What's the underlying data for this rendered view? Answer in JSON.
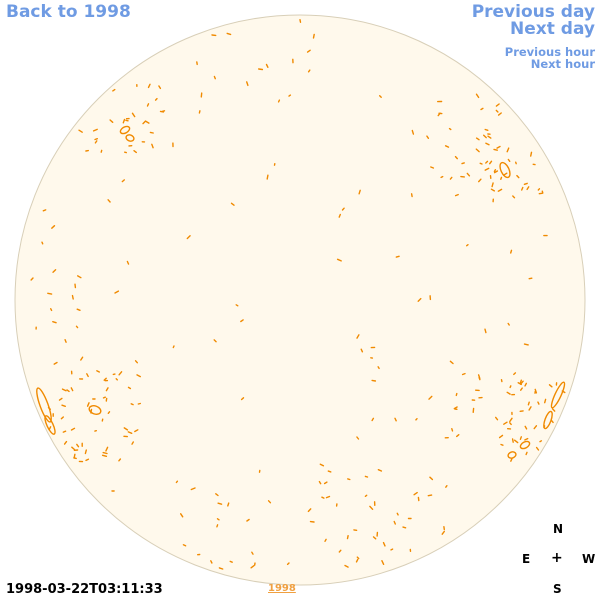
{
  "nav": {
    "back_label": "Back to 1998",
    "prev_day_label": "Previous day",
    "next_day_label": "Next day",
    "prev_hour_label": "Previous hour",
    "next_hour_label": "Next hour"
  },
  "compass": {
    "north": "N",
    "east": "E",
    "center": "+",
    "west": "W",
    "south": "S"
  },
  "timestamp": "1998-03-22T03:11:33",
  "year_link": "1998",
  "colors": {
    "link": "#6f9be3",
    "disk_fill": "#fff9ec",
    "disk_edge": "#d8cfb8",
    "contour": "#f08a00",
    "year_link": "#f0a040"
  },
  "icons": {
    "disk": "solar-disk-map",
    "compass": "compass-rose"
  }
}
